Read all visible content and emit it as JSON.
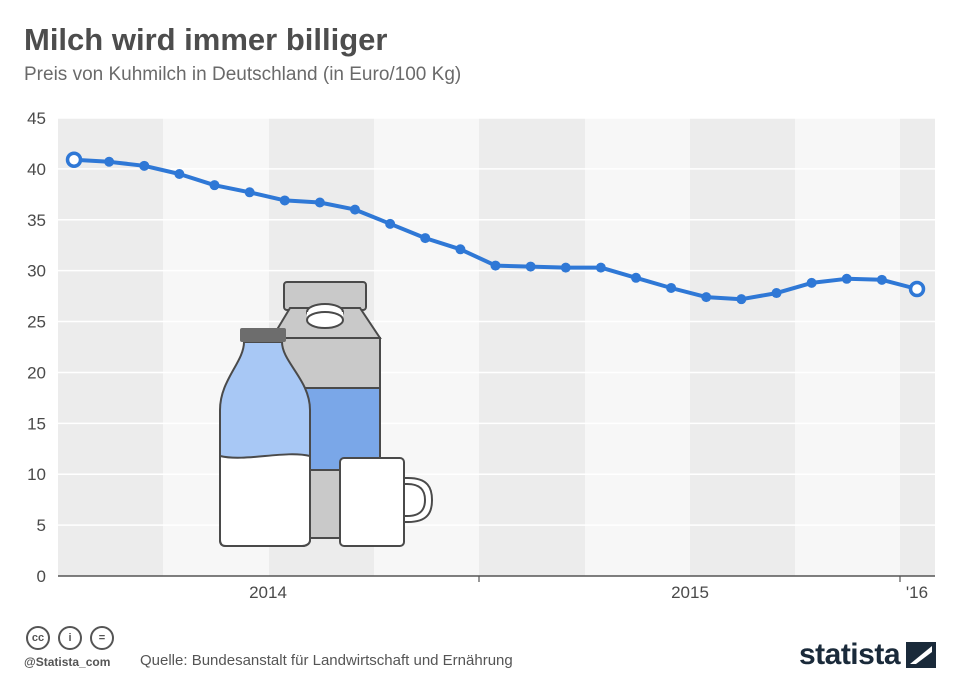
{
  "header": {
    "title": "Milch wird immer billiger",
    "subtitle": "Preis von Kuhmilch in Deutschland (in Euro/100 Kg)"
  },
  "chart_data": {
    "type": "line",
    "title": "Milch wird immer billiger",
    "subtitle": "Preis von Kuhmilch in Deutschland (in Euro/100 Kg)",
    "xlabel": "",
    "ylabel": "",
    "ylim": [
      0,
      45
    ],
    "yticks": [
      0,
      5,
      10,
      15,
      20,
      25,
      30,
      35,
      40,
      45
    ],
    "x_year_labels": [
      "2014",
      "2015",
      "'16"
    ],
    "grid": true,
    "series": [
      {
        "values": [
          40.9,
          40.7,
          40.3,
          39.5,
          38.4,
          37.7,
          36.9,
          36.7,
          36.0,
          34.6,
          33.2,
          32.1,
          30.5,
          30.4,
          30.3,
          30.3,
          29.3,
          28.3,
          27.4,
          27.2,
          27.8,
          28.8,
          29.2,
          29.1,
          28.2
        ],
        "color": "#2f78d6"
      }
    ]
  },
  "footer": {
    "license_icons": [
      "cc",
      "i",
      "="
    ],
    "handle": "@Statista_com",
    "source": "Quelle: Bundesanstalt für Landwirtschaft und Ernährung",
    "brand": "statista"
  },
  "colors": {
    "line": "#2f78d6",
    "band_gray": "#ececec",
    "band_white": "#f7f7f7"
  }
}
